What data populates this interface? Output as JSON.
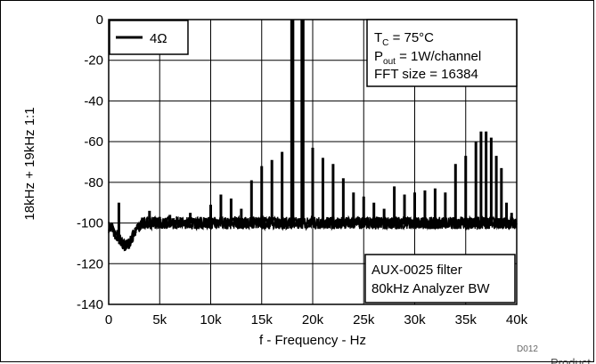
{
  "figure_id": "D012",
  "footer_fragment": "Product",
  "chart_data": {
    "type": "line",
    "xlabel": "f - Frequency - Hz",
    "ylabel": "18kHz + 19kHz 1:1",
    "xlim": [
      0,
      40000
    ],
    "ylim": [
      -140,
      0
    ],
    "x_ticks": [
      0,
      5000,
      10000,
      15000,
      20000,
      25000,
      30000,
      35000,
      40000
    ],
    "x_tick_labels": [
      "0",
      "5k",
      "10k",
      "15k",
      "20k",
      "25k",
      "30k",
      "35k",
      "40k"
    ],
    "y_ticks": [
      0,
      -20,
      -40,
      -60,
      -80,
      -100,
      -120,
      -140
    ],
    "y_tick_labels": [
      "0",
      "-20",
      "-40",
      "-60",
      "-80",
      "-100",
      "-120",
      "-140"
    ],
    "grid": true,
    "legend": {
      "position": "top-left",
      "entries": [
        "4Ω"
      ]
    },
    "annotations": {
      "conditions": [
        "T_C = 75°C",
        "P_out = 1W/channel",
        "FFT size = 16384"
      ],
      "filter": [
        "AUX-0025 filter",
        "80kHz Analyzer BW"
      ]
    },
    "series": [
      {
        "name": "4Ω",
        "color": "#000000",
        "noise_floor_db": -100,
        "low_freq_dip": [
          {
            "x": 400,
            "y": -104
          },
          {
            "x": 800,
            "y": -106
          },
          {
            "x": 1200,
            "y": -109
          },
          {
            "x": 1600,
            "y": -111
          },
          {
            "x": 2000,
            "y": -110
          },
          {
            "x": 2400,
            "y": -106
          },
          {
            "x": 2800,
            "y": -103
          },
          {
            "x": 3200,
            "y": -101
          }
        ],
        "peaks": [
          {
            "x": 1000,
            "y": -90
          },
          {
            "x": 4000,
            "y": -94
          },
          {
            "x": 5000,
            "y": -97
          },
          {
            "x": 6000,
            "y": -96
          },
          {
            "x": 8000,
            "y": -95
          },
          {
            "x": 10000,
            "y": -91
          },
          {
            "x": 11000,
            "y": -86
          },
          {
            "x": 12000,
            "y": -88
          },
          {
            "x": 13000,
            "y": -93
          },
          {
            "x": 14000,
            "y": -79
          },
          {
            "x": 15000,
            "y": -72
          },
          {
            "x": 16000,
            "y": -69
          },
          {
            "x": 17000,
            "y": -65
          },
          {
            "x": 18000,
            "y": 0
          },
          {
            "x": 19000,
            "y": 0
          },
          {
            "x": 20000,
            "y": -63
          },
          {
            "x": 21000,
            "y": -68
          },
          {
            "x": 22000,
            "y": -71
          },
          {
            "x": 23000,
            "y": -78
          },
          {
            "x": 24000,
            "y": -85
          },
          {
            "x": 25000,
            "y": -87
          },
          {
            "x": 26000,
            "y": -90
          },
          {
            "x": 27000,
            "y": -93
          },
          {
            "x": 28000,
            "y": -82
          },
          {
            "x": 29000,
            "y": -86
          },
          {
            "x": 30000,
            "y": -85
          },
          {
            "x": 31000,
            "y": -84
          },
          {
            "x": 32000,
            "y": -83
          },
          {
            "x": 33000,
            "y": -85
          },
          {
            "x": 34000,
            "y": -71
          },
          {
            "x": 35000,
            "y": -67
          },
          {
            "x": 36000,
            "y": -60
          },
          {
            "x": 36500,
            "y": -55
          },
          {
            "x": 37000,
            "y": -55
          },
          {
            "x": 37500,
            "y": -58
          },
          {
            "x": 38000,
            "y": -67
          },
          {
            "x": 38500,
            "y": -73
          },
          {
            "x": 39000,
            "y": -90
          },
          {
            "x": 39500,
            "y": -95
          }
        ]
      }
    ]
  }
}
